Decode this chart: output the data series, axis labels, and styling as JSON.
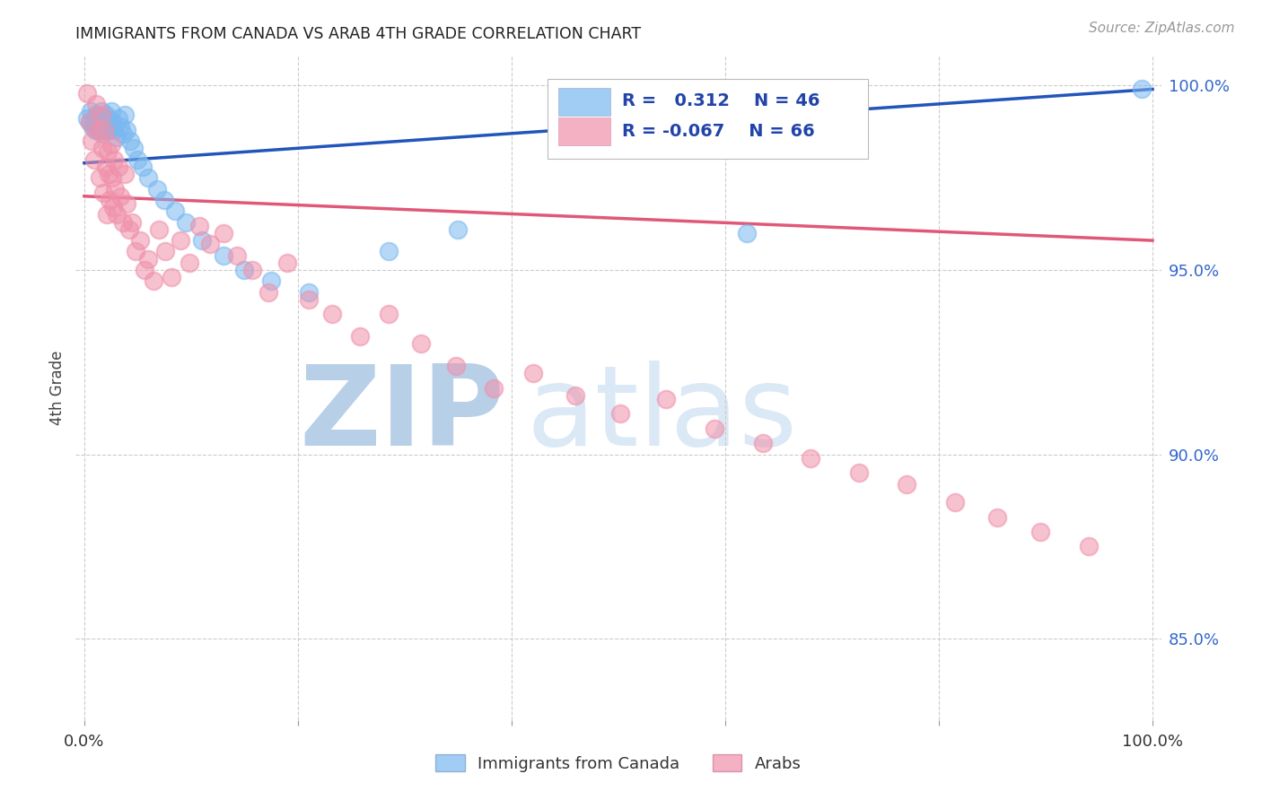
{
  "title": "IMMIGRANTS FROM CANADA VS ARAB 4TH GRADE CORRELATION CHART",
  "source": "Source: ZipAtlas.com",
  "ylabel": "4th Grade",
  "watermark_zip": "ZIP",
  "watermark_atlas": "atlas",
  "legend_canada": "Immigrants from Canada",
  "legend_arab": "Arabs",
  "r_canada": 0.312,
  "n_canada": 46,
  "r_arab": -0.067,
  "n_arab": 66,
  "canada_color": "#7ab8f0",
  "arab_color": "#f090aa",
  "canada_line_color": "#2255bb",
  "arab_line_color": "#e05878",
  "bg_color": "#ffffff",
  "grid_color": "#cccccc",
  "ytick_color": "#3366cc",
  "title_color": "#222222",
  "legend_text_color": "#2244aa",
  "ylim_min": 0.828,
  "ylim_max": 1.008,
  "xlim_min": -0.008,
  "xlim_max": 1.008,
  "yticks": [
    0.85,
    0.9,
    0.95,
    1.0
  ],
  "ytick_labels": [
    "85.0%",
    "90.0%",
    "95.0%",
    "100.0%"
  ],
  "canada_x": [
    0.003,
    0.005,
    0.006,
    0.008,
    0.009,
    0.01,
    0.011,
    0.012,
    0.013,
    0.014,
    0.015,
    0.016,
    0.017,
    0.018,
    0.019,
    0.02,
    0.021,
    0.022,
    0.023,
    0.025,
    0.026,
    0.028,
    0.03,
    0.032,
    0.034,
    0.036,
    0.038,
    0.04,
    0.043,
    0.046,
    0.05,
    0.055,
    0.06,
    0.068,
    0.075,
    0.085,
    0.095,
    0.11,
    0.13,
    0.15,
    0.175,
    0.21,
    0.285,
    0.35,
    0.62,
    0.99
  ],
  "canada_y": [
    0.991,
    0.99,
    0.993,
    0.989,
    0.991,
    0.988,
    0.992,
    0.99,
    0.988,
    0.991,
    0.989,
    0.993,
    0.987,
    0.99,
    0.988,
    0.992,
    0.989,
    0.991,
    0.988,
    0.993,
    0.99,
    0.988,
    0.986,
    0.991,
    0.989,
    0.987,
    0.992,
    0.988,
    0.985,
    0.983,
    0.98,
    0.978,
    0.975,
    0.972,
    0.969,
    0.966,
    0.963,
    0.958,
    0.954,
    0.95,
    0.947,
    0.944,
    0.955,
    0.961,
    0.96,
    0.999
  ],
  "arab_x": [
    0.003,
    0.005,
    0.007,
    0.009,
    0.011,
    0.013,
    0.014,
    0.016,
    0.017,
    0.018,
    0.019,
    0.02,
    0.021,
    0.022,
    0.023,
    0.024,
    0.025,
    0.026,
    0.027,
    0.028,
    0.029,
    0.03,
    0.032,
    0.034,
    0.036,
    0.038,
    0.04,
    0.042,
    0.045,
    0.048,
    0.052,
    0.056,
    0.06,
    0.065,
    0.07,
    0.076,
    0.082,
    0.09,
    0.098,
    0.108,
    0.118,
    0.13,
    0.143,
    0.157,
    0.172,
    0.19,
    0.21,
    0.232,
    0.258,
    0.285,
    0.315,
    0.348,
    0.383,
    0.42,
    0.46,
    0.502,
    0.545,
    0.59,
    0.635,
    0.68,
    0.725,
    0.77,
    0.815,
    0.855,
    0.895,
    0.94
  ],
  "arab_y": [
    0.998,
    0.99,
    0.985,
    0.98,
    0.995,
    0.988,
    0.975,
    0.992,
    0.983,
    0.971,
    0.988,
    0.978,
    0.965,
    0.982,
    0.976,
    0.969,
    0.984,
    0.975,
    0.967,
    0.98,
    0.972,
    0.965,
    0.978,
    0.97,
    0.963,
    0.976,
    0.968,
    0.961,
    0.963,
    0.955,
    0.958,
    0.95,
    0.953,
    0.947,
    0.961,
    0.955,
    0.948,
    0.958,
    0.952,
    0.962,
    0.957,
    0.96,
    0.954,
    0.95,
    0.944,
    0.952,
    0.942,
    0.938,
    0.932,
    0.938,
    0.93,
    0.924,
    0.918,
    0.922,
    0.916,
    0.911,
    0.915,
    0.907,
    0.903,
    0.899,
    0.895,
    0.892,
    0.887,
    0.883,
    0.879,
    0.875
  ],
  "canada_trend_x": [
    0.0,
    1.0
  ],
  "canada_trend_y": [
    0.979,
    0.999
  ],
  "arab_trend_x": [
    0.0,
    1.0
  ],
  "arab_trend_y": [
    0.97,
    0.958
  ]
}
